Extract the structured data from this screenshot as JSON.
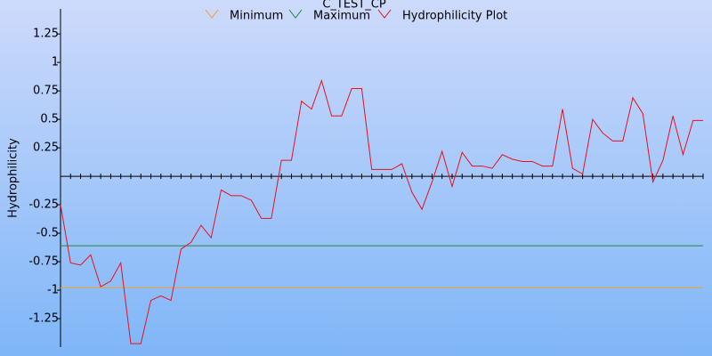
{
  "chart_data": {
    "type": "line",
    "title": "C_TEST_CP",
    "y_label": "Hydrophilicity",
    "ylim": [
      -1.5,
      1.47
    ],
    "yticks": [
      -1.25,
      -1,
      -0.75,
      -0.5,
      -0.25,
      0.25,
      0.5,
      0.75,
      1,
      1.25
    ],
    "reference_lines": [
      {
        "name": "Minimum",
        "color": "#e8a030",
        "value": -0.98
      },
      {
        "name": "Maximum",
        "color": "#1f8a3a",
        "value": -0.61
      }
    ],
    "series": [
      {
        "name": "Hydrophilicity Plot",
        "color": "#e8101e",
        "values": [
          -0.25,
          -0.76,
          -0.78,
          -0.69,
          -0.97,
          -0.92,
          -0.76,
          -1.47,
          -1.47,
          -1.09,
          -1.05,
          -1.09,
          -0.64,
          -0.58,
          -0.43,
          -0.54,
          -0.12,
          -0.17,
          -0.17,
          -0.21,
          -0.37,
          -0.37,
          0.14,
          0.14,
          0.66,
          0.59,
          0.84,
          0.53,
          0.53,
          0.77,
          0.77,
          0.06,
          0.06,
          0.06,
          0.11,
          -0.14,
          -0.29,
          -0.05,
          0.22,
          -0.09,
          0.21,
          0.09,
          0.09,
          0.07,
          0.19,
          0.15,
          0.13,
          0.13,
          0.09,
          0.09,
          0.59,
          0.07,
          0.02,
          0.5,
          0.38,
          0.31,
          0.31,
          0.69,
          0.55,
          -0.05,
          0.14,
          0.53,
          0.19,
          0.49,
          0.49
        ]
      }
    ]
  }
}
